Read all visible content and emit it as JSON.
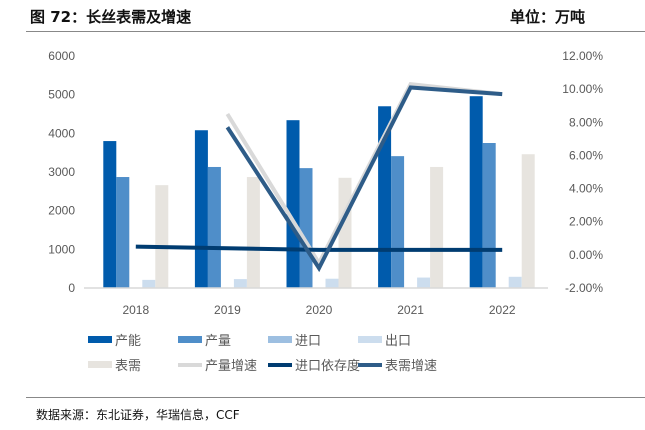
{
  "header": {
    "title": "图 72：长丝表需及增速",
    "unit": "单位：万吨"
  },
  "source": "数据来源：东北证券，华瑞信息，CCF",
  "chart_data": {
    "type": "bar",
    "categories": [
      "2018",
      "2019",
      "2020",
      "2021",
      "2022"
    ],
    "y_left": {
      "range": [
        0,
        6000
      ],
      "ticks": [
        "0",
        "1000",
        "2000",
        "3000",
        "4000",
        "5000",
        "6000"
      ]
    },
    "y_right": {
      "range": [
        -0.02,
        0.12
      ],
      "ticks": [
        "-2.00%",
        "0.00%",
        "2.00%",
        "4.00%",
        "6.00%",
        "8.00%",
        "10.00%",
        "12.00%"
      ]
    },
    "grid": false,
    "legend_position": "bottom",
    "bar_series": [
      {
        "name": "产能",
        "color": "#005BAC",
        "values": [
          3800,
          4080,
          4340,
          4700,
          4960
        ]
      },
      {
        "name": "产量",
        "color": "#4F8EC9",
        "values": [
          2870,
          3130,
          3100,
          3410,
          3750
        ]
      },
      {
        "name": "进口",
        "color": "#9DBFE1",
        "values": [
          0,
          0,
          0,
          0,
          0
        ]
      },
      {
        "name": "出口",
        "color": "#CCDDEE",
        "values": [
          210,
          230,
          240,
          270,
          290
        ]
      },
      {
        "name": "表需",
        "color": "#E7E4DF",
        "values": [
          2660,
          2870,
          2850,
          3130,
          3460
        ]
      }
    ],
    "line_series": [
      {
        "name": "产量增速",
        "color": "#D9D9D9",
        "axis": "right",
        "values": [
          null,
          0.085,
          -0.005,
          0.103,
          0.097
        ]
      },
      {
        "name": "进口依存度",
        "color": "#003C71",
        "axis": "right",
        "values": [
          0.005,
          0.004,
          0.003,
          0.003,
          0.003
        ]
      },
      {
        "name": "表需增速",
        "color": "#2E5C88",
        "axis": "right",
        "values": [
          null,
          0.077,
          -0.008,
          0.101,
          0.097
        ]
      }
    ]
  }
}
